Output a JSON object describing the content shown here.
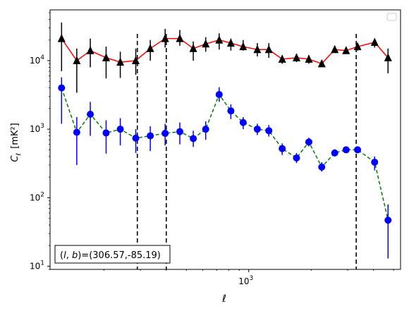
{
  "chart_data": {
    "type": "scatter",
    "title": "",
    "xlabel": "ℓ",
    "ylabel_main": "C",
    "ylabel_sub": "ℓ",
    "ylabel_unit": "[mK²]",
    "xscale": "log",
    "yscale": "log",
    "xlim": [
      110,
      5400
    ],
    "ylim": [
      9,
      55000
    ],
    "x_ticks": [
      {
        "value": 1000,
        "label": "10",
        "sup": "3"
      }
    ],
    "y_ticks": [
      {
        "value": 10,
        "label": "10",
        "sup": "1"
      },
      {
        "value": 100,
        "label": "10",
        "sup": "2"
      },
      {
        "value": 1000,
        "label": "10",
        "sup": "3"
      },
      {
        "value": 10000,
        "label": "10",
        "sup": "4"
      }
    ],
    "vlines": [
      290,
      400,
      3300
    ],
    "annotation": "(l, b)=(306.57,-85.19)",
    "legend": "upper right (empty)",
    "series": [
      {
        "marker": "triangle",
        "marker_color": "#000000",
        "line_color": "#ff0000",
        "line_style": "solid",
        "points": [
          {
            "x": 125,
            "y": 21000,
            "lo": 7000,
            "hi": 36000
          },
          {
            "x": 148,
            "y": 10000,
            "lo": 3400,
            "hi": 15000
          },
          {
            "x": 172,
            "y": 14000,
            "lo": 8000,
            "hi": 21000
          },
          {
            "x": 205,
            "y": 11000,
            "lo": 5500,
            "hi": 16000
          },
          {
            "x": 240,
            "y": 9500,
            "lo": 5600,
            "hi": 13500
          },
          {
            "x": 285,
            "y": 10000,
            "lo": 6200,
            "hi": 15000
          },
          {
            "x": 335,
            "y": 15000,
            "lo": 10000,
            "hi": 20000
          },
          {
            "x": 395,
            "y": 21000,
            "lo": 15500,
            "hi": 29000
          },
          {
            "x": 465,
            "y": 21000,
            "lo": 16500,
            "hi": 28000
          },
          {
            "x": 540,
            "y": 15000,
            "lo": 10000,
            "hi": 19000
          },
          {
            "x": 620,
            "y": 17500,
            "lo": 13500,
            "hi": 22000
          },
          {
            "x": 720,
            "y": 20000,
            "lo": 14500,
            "hi": 25000
          },
          {
            "x": 820,
            "y": 18000,
            "lo": 14000,
            "hi": 21000
          },
          {
            "x": 940,
            "y": 16000,
            "lo": 14000,
            "hi": 20000
          },
          {
            "x": 1100,
            "y": 14500,
            "lo": 11500,
            "hi": 18000
          },
          {
            "x": 1250,
            "y": 14500,
            "lo": 11000,
            "hi": 18000
          },
          {
            "x": 1450,
            "y": 10500,
            "lo": 9000,
            "hi": 12000
          },
          {
            "x": 1700,
            "y": 11000,
            "lo": 9500,
            "hi": 12500
          },
          {
            "x": 1950,
            "y": 10500,
            "lo": 9000,
            "hi": 12000
          },
          {
            "x": 2250,
            "y": 9000,
            "lo": 8200,
            "hi": 9800
          },
          {
            "x": 2600,
            "y": 14500,
            "lo": 13000,
            "hi": 16000
          },
          {
            "x": 2950,
            "y": 14000,
            "lo": 12500,
            "hi": 15500
          },
          {
            "x": 3350,
            "y": 16000,
            "lo": 14000,
            "hi": 18000
          },
          {
            "x": 4050,
            "y": 18500,
            "lo": 15500,
            "hi": 21000
          },
          {
            "x": 4700,
            "y": 11000,
            "lo": 6500,
            "hi": 15000
          }
        ]
      },
      {
        "marker": "circle",
        "marker_color": "#0000ff",
        "line_color": "#008000",
        "line_style": "dashed",
        "points": [
          {
            "x": 125,
            "y": 4000,
            "lo": 1200,
            "hi": 5700
          },
          {
            "x": 148,
            "y": 900,
            "lo": 300,
            "hi": 1500
          },
          {
            "x": 172,
            "y": 1650,
            "lo": 800,
            "hi": 2500
          },
          {
            "x": 205,
            "y": 880,
            "lo": 440,
            "hi": 1350
          },
          {
            "x": 240,
            "y": 1000,
            "lo": 580,
            "hi": 1450
          },
          {
            "x": 285,
            "y": 740,
            "lo": 450,
            "hi": 1000
          },
          {
            "x": 335,
            "y": 800,
            "lo": 480,
            "hi": 1100
          },
          {
            "x": 395,
            "y": 870,
            "lo": 580,
            "hi": 1200
          },
          {
            "x": 465,
            "y": 920,
            "lo": 600,
            "hi": 1250
          },
          {
            "x": 540,
            "y": 730,
            "lo": 550,
            "hi": 950
          },
          {
            "x": 620,
            "y": 1000,
            "lo": 700,
            "hi": 1300
          },
          {
            "x": 720,
            "y": 3200,
            "lo": 2500,
            "hi": 4100
          },
          {
            "x": 820,
            "y": 1850,
            "lo": 1400,
            "hi": 2300
          },
          {
            "x": 940,
            "y": 1250,
            "lo": 1000,
            "hi": 1500
          },
          {
            "x": 1100,
            "y": 1000,
            "lo": 820,
            "hi": 1200
          },
          {
            "x": 1250,
            "y": 950,
            "lo": 780,
            "hi": 1150
          },
          {
            "x": 1450,
            "y": 520,
            "lo": 420,
            "hi": 620
          },
          {
            "x": 1700,
            "y": 380,
            "lo": 320,
            "hi": 450
          },
          {
            "x": 1950,
            "y": 650,
            "lo": 560,
            "hi": 750
          },
          {
            "x": 2250,
            "y": 280,
            "lo": 240,
            "hi": 330
          },
          {
            "x": 2600,
            "y": 450,
            "lo": 400,
            "hi": 510
          },
          {
            "x": 2950,
            "y": 500,
            "lo": 450,
            "hi": 550
          },
          {
            "x": 3350,
            "y": 500,
            "lo": 450,
            "hi": 560
          },
          {
            "x": 4050,
            "y": 330,
            "lo": 250,
            "hi": 400
          },
          {
            "x": 4700,
            "y": 47,
            "lo": 13,
            "hi": 80
          }
        ]
      }
    ]
  }
}
